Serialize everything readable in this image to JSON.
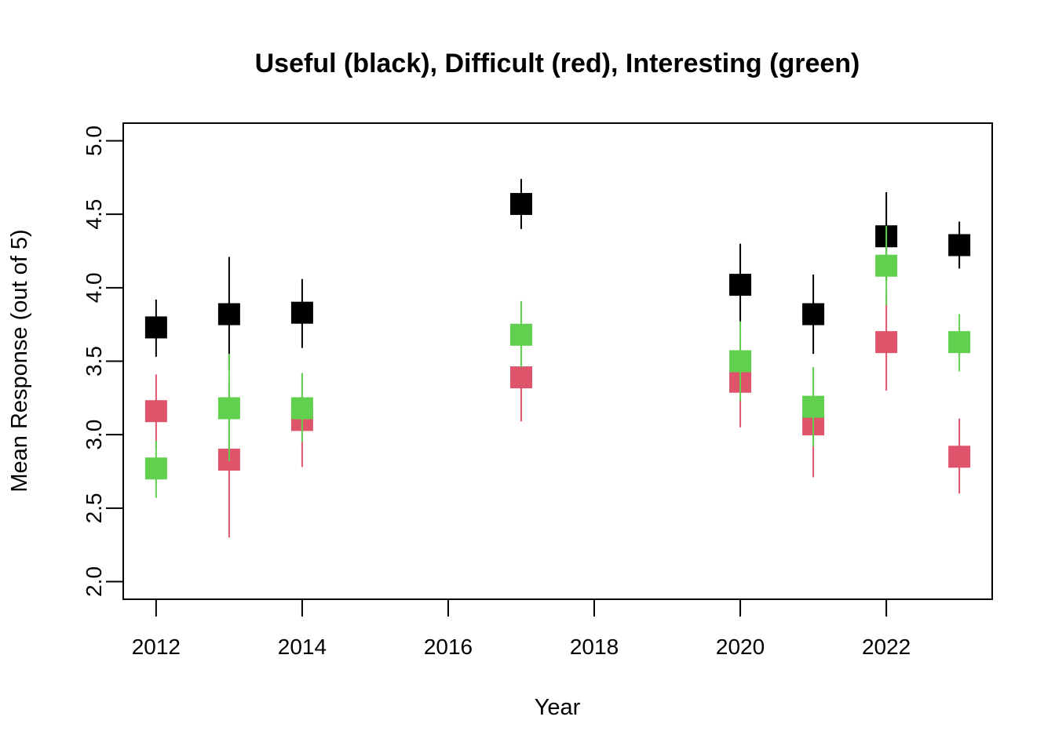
{
  "chart_data": {
    "type": "scatter",
    "title": "Useful (black), Difficult (red), Interesting (green)",
    "xlabel": "Year",
    "ylabel": "Mean Response (out of 5)",
    "xlim": [
      2011.55,
      2023.45
    ],
    "ylim": [
      1.88,
      5.12
    ],
    "xticks": [
      2012,
      2014,
      2016,
      2018,
      2020,
      2022
    ],
    "yticks": [
      2.0,
      2.5,
      3.0,
      3.5,
      4.0,
      4.5,
      5.0
    ],
    "grid": false,
    "colors": {
      "useful": "#000000",
      "difficult": "#DF536B",
      "interesting": "#61D04F"
    },
    "series": [
      {
        "color": "#000000",
        "points": [
          {
            "x": 2012,
            "y": 3.73,
            "lo": 3.53,
            "hi": 3.92
          },
          {
            "x": 2013,
            "y": 3.82,
            "lo": 3.44,
            "hi": 4.21
          },
          {
            "x": 2014,
            "y": 3.83,
            "lo": 3.59,
            "hi": 4.06
          },
          {
            "x": 2017,
            "y": 4.57,
            "lo": 4.4,
            "hi": 4.74
          },
          {
            "x": 2020,
            "y": 4.02,
            "lo": 3.77,
            "hi": 4.3
          },
          {
            "x": 2021,
            "y": 3.82,
            "lo": 3.55,
            "hi": 4.09
          },
          {
            "x": 2022,
            "y": 4.35,
            "lo": 4.05,
            "hi": 4.65
          },
          {
            "x": 2023,
            "y": 4.29,
            "lo": 4.13,
            "hi": 4.45
          }
        ]
      },
      {
        "color": "#DF536B",
        "points": [
          {
            "x": 2012,
            "y": 3.16,
            "lo": 2.91,
            "hi": 3.41
          },
          {
            "x": 2013,
            "y": 2.83,
            "lo": 2.3,
            "hi": 3.36
          },
          {
            "x": 2014,
            "y": 3.1,
            "lo": 2.78,
            "hi": 3.41
          },
          {
            "x": 2017,
            "y": 3.39,
            "lo": 3.09,
            "hi": 3.69
          },
          {
            "x": 2020,
            "y": 3.36,
            "lo": 3.05,
            "hi": 3.67
          },
          {
            "x": 2021,
            "y": 3.07,
            "lo": 2.71,
            "hi": 3.44
          },
          {
            "x": 2022,
            "y": 3.63,
            "lo": 3.3,
            "hi": 3.96
          },
          {
            "x": 2023,
            "y": 2.85,
            "lo": 2.6,
            "hi": 3.11
          }
        ]
      },
      {
        "color": "#61D04F",
        "points": [
          {
            "x": 2012,
            "y": 2.77,
            "lo": 2.57,
            "hi": 2.96
          },
          {
            "x": 2013,
            "y": 3.18,
            "lo": 2.82,
            "hi": 3.55
          },
          {
            "x": 2014,
            "y": 3.18,
            "lo": 2.95,
            "hi": 3.42
          },
          {
            "x": 2017,
            "y": 3.68,
            "lo": 3.46,
            "hi": 3.91
          },
          {
            "x": 2020,
            "y": 3.5,
            "lo": 3.23,
            "hi": 3.77
          },
          {
            "x": 2021,
            "y": 3.19,
            "lo": 2.92,
            "hi": 3.46
          },
          {
            "x": 2022,
            "y": 4.15,
            "lo": 3.88,
            "hi": 4.42
          },
          {
            "x": 2023,
            "y": 3.63,
            "lo": 3.43,
            "hi": 3.82
          }
        ]
      }
    ]
  }
}
